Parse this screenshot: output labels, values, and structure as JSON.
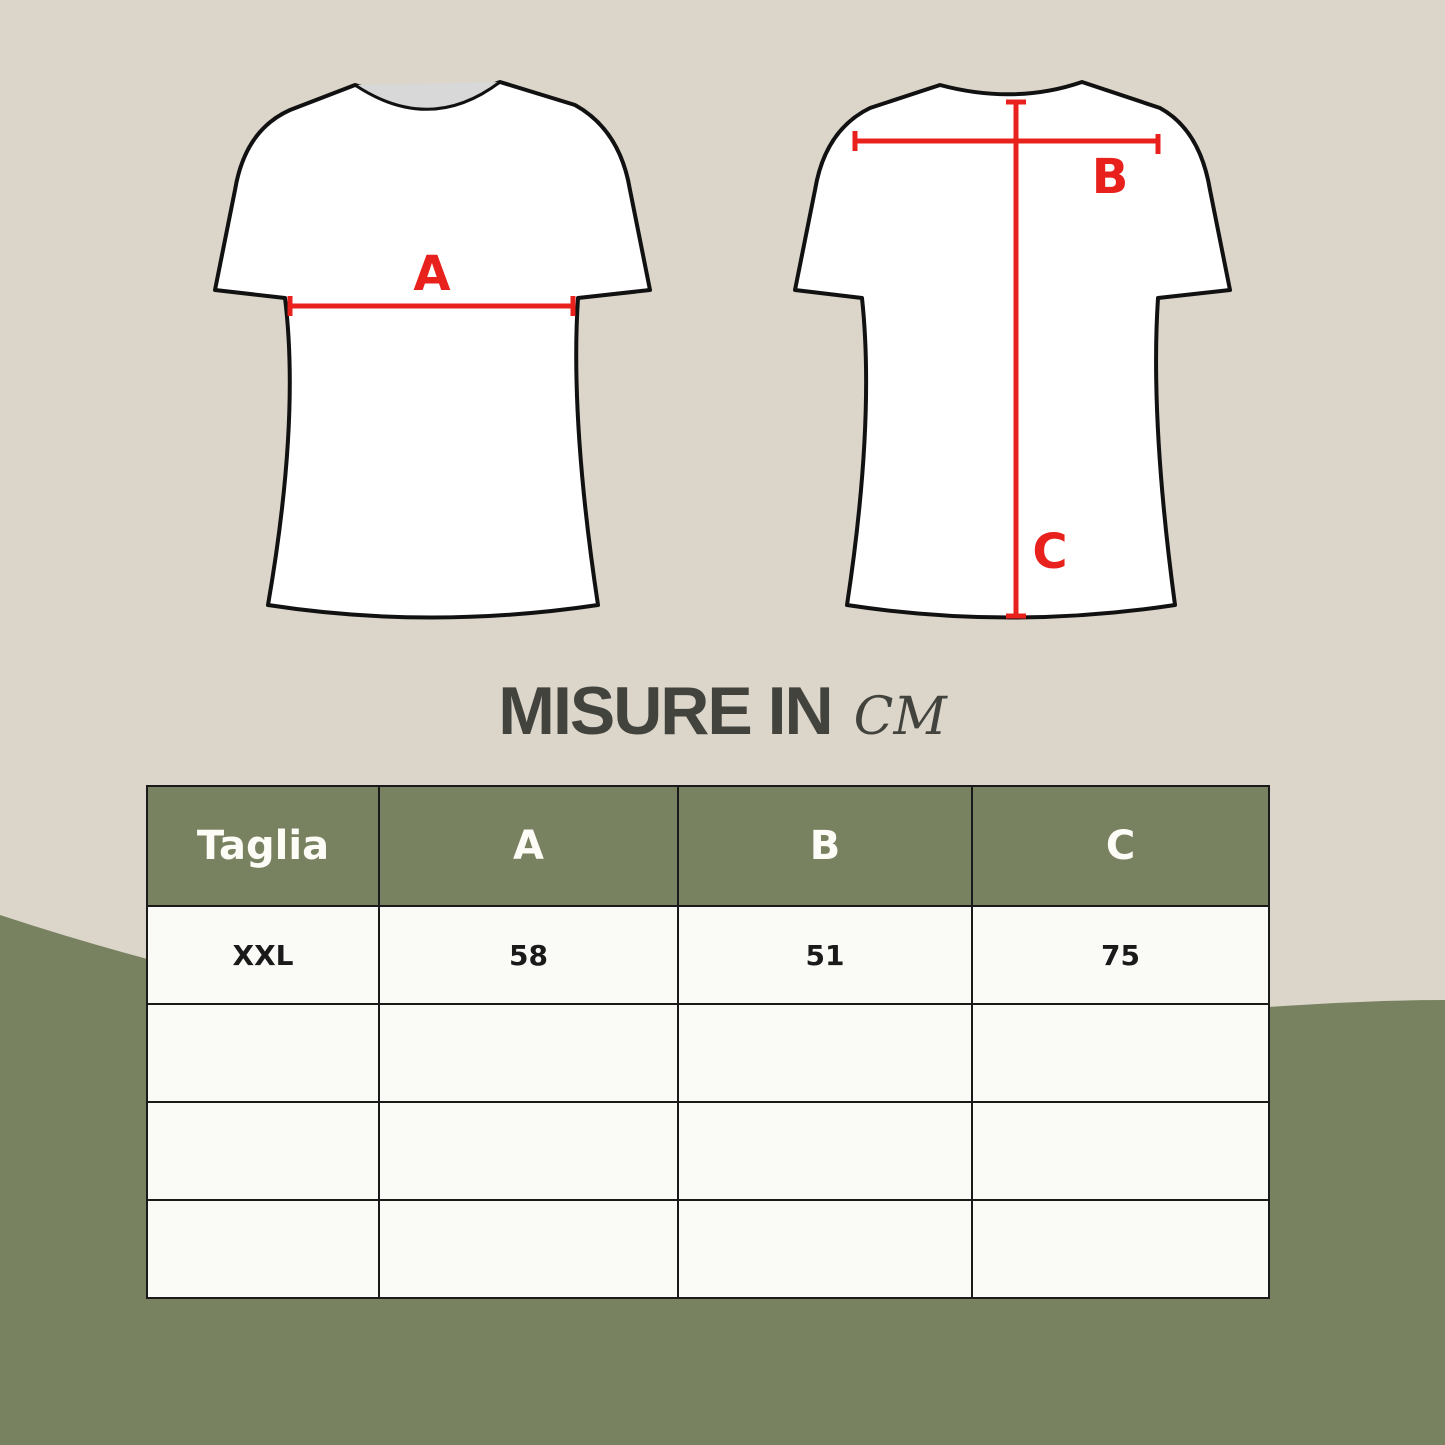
{
  "colors": {
    "background": "#dbd5ca",
    "accent_green": "#788260",
    "measure_red": "#e8211d",
    "text_dark": "#43433d"
  },
  "diagram": {
    "front_label": "A",
    "back_labels": [
      "B",
      "C"
    ]
  },
  "title": {
    "main": "MISURE IN",
    "unit": "CM"
  },
  "table": {
    "headers": [
      "Taglia",
      "A",
      "B",
      "C"
    ],
    "rows": [
      [
        "XXL",
        "58",
        "51",
        "75"
      ],
      [
        "",
        "",
        "",
        ""
      ],
      [
        "",
        "",
        "",
        ""
      ],
      [
        "",
        "",
        "",
        ""
      ]
    ]
  }
}
